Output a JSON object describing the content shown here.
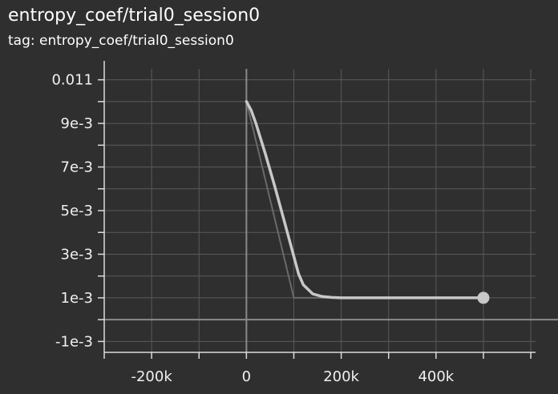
{
  "header": {
    "title": "entropy_coef/trial0_session0",
    "subtitle": "tag: entropy_coef/trial0_session0"
  },
  "colors": {
    "background": "#2f2f2f",
    "grid": "#5a5a5a",
    "axis": "#8a8a8a",
    "smoothed_line": "#c8c8c8",
    "raw_line": "#6a6a6a",
    "text": "#f0f0f0"
  },
  "chart_data": {
    "type": "line",
    "title": "entropy_coef/trial0_session0",
    "subtitle": "tag: entropy_coef/trial0_session0",
    "xlabel": "",
    "ylabel": "",
    "xlim": [
      -300000,
      610000
    ],
    "ylim": [
      -0.0015,
      0.0115
    ],
    "grid": true,
    "x_tick_labels": [
      {
        "value": -200000,
        "label": "-200k"
      },
      {
        "value": 0,
        "label": "0"
      },
      {
        "value": 200000,
        "label": "200k"
      },
      {
        "value": 400000,
        "label": "400k"
      }
    ],
    "y_tick_labels": [
      {
        "value": 0.011,
        "label": "0.011"
      },
      {
        "value": 0.009,
        "label": "9e-3"
      },
      {
        "value": 0.007,
        "label": "7e-3"
      },
      {
        "value": 0.005,
        "label": "5e-3"
      },
      {
        "value": 0.003,
        "label": "3e-3"
      },
      {
        "value": 0.001,
        "label": "1e-3"
      },
      {
        "value": -0.001,
        "label": "-1e-3"
      }
    ],
    "series": [
      {
        "role": "raw",
        "x": [
          0,
          100000,
          500000
        ],
        "y": [
          0.01,
          0.001,
          0.001
        ]
      },
      {
        "role": "smoothed",
        "x": [
          0,
          10000,
          20000,
          40000,
          60000,
          80000,
          100000,
          110000,
          120000,
          140000,
          160000,
          180000,
          200000,
          250000,
          300000,
          400000,
          500000
        ],
        "y": [
          0.01,
          0.0096,
          0.009,
          0.0076,
          0.0061,
          0.0045,
          0.0029,
          0.0021,
          0.0016,
          0.00118,
          0.00106,
          0.00102,
          0.001,
          0.001,
          0.001,
          0.001,
          0.001
        ]
      }
    ],
    "end_marker": {
      "x": 500000,
      "y": 0.001
    }
  }
}
